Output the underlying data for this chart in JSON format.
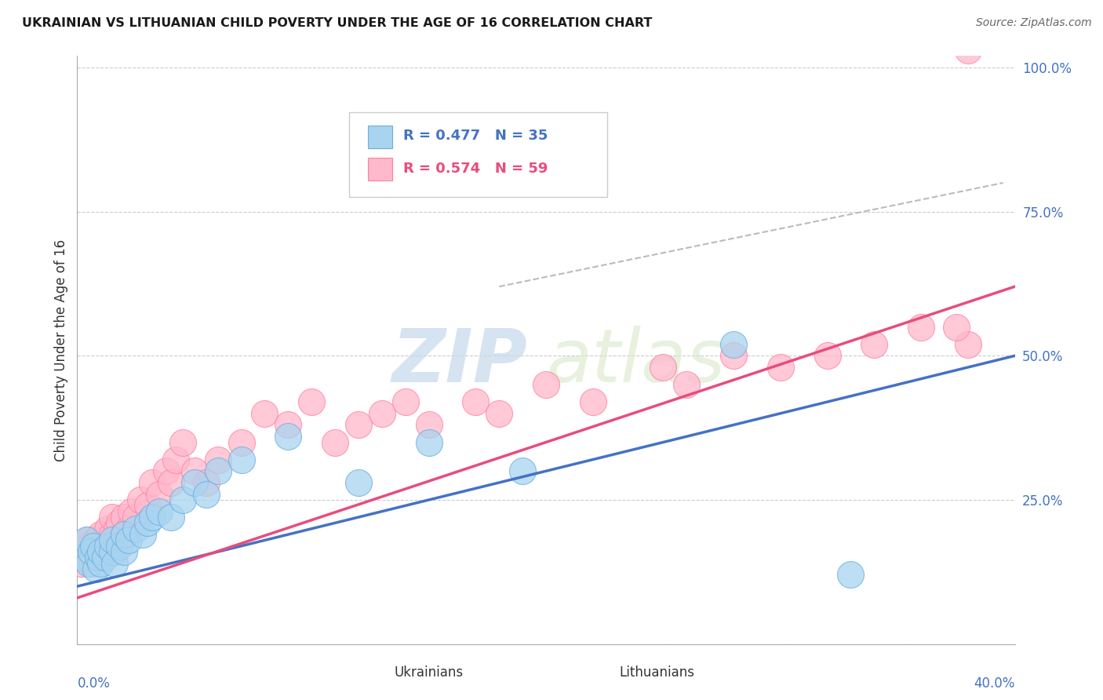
{
  "title": "UKRAINIAN VS LITHUANIAN CHILD POVERTY UNDER THE AGE OF 16 CORRELATION CHART",
  "source": "Source: ZipAtlas.com",
  "ylabel": "Child Poverty Under the Age of 16",
  "xmin": 0.0,
  "xmax": 0.4,
  "ymin": 0.0,
  "ymax": 1.0,
  "color_ukrainian": "#A8D4F0",
  "color_ukrainian_edge": "#6AAEE0",
  "color_lithuanian": "#FFB8CC",
  "color_lithuanian_edge": "#FF80A0",
  "color_ukrainian_line": "#4472C4",
  "color_lithuanian_line": "#E84C7D",
  "color_dashed": "#BBBBBB",
  "watermark_color": "#E0E8F0",
  "legend_r_uk": "R = 0.477",
  "legend_n_uk": "N = 35",
  "legend_r_lt": "R = 0.574",
  "legend_n_lt": "N = 59",
  "uk_x": [
    0.002,
    0.004,
    0.005,
    0.006,
    0.007,
    0.008,
    0.009,
    0.01,
    0.01,
    0.012,
    0.013,
    0.015,
    0.015,
    0.016,
    0.018,
    0.02,
    0.02,
    0.022,
    0.025,
    0.028,
    0.03,
    0.032,
    0.035,
    0.04,
    0.045,
    0.05,
    0.055,
    0.06,
    0.07,
    0.09,
    0.12,
    0.15,
    0.19,
    0.28,
    0.33
  ],
  "uk_y": [
    0.15,
    0.18,
    0.14,
    0.16,
    0.17,
    0.13,
    0.15,
    0.14,
    0.16,
    0.15,
    0.17,
    0.16,
    0.18,
    0.14,
    0.17,
    0.16,
    0.19,
    0.18,
    0.2,
    0.19,
    0.21,
    0.22,
    0.23,
    0.22,
    0.25,
    0.28,
    0.26,
    0.3,
    0.32,
    0.36,
    0.28,
    0.35,
    0.3,
    0.52,
    0.12
  ],
  "lt_x": [
    0.002,
    0.003,
    0.004,
    0.005,
    0.006,
    0.007,
    0.008,
    0.009,
    0.01,
    0.01,
    0.011,
    0.012,
    0.013,
    0.014,
    0.015,
    0.015,
    0.016,
    0.017,
    0.018,
    0.019,
    0.02,
    0.02,
    0.022,
    0.023,
    0.025,
    0.027,
    0.03,
    0.032,
    0.035,
    0.038,
    0.04,
    0.042,
    0.045,
    0.05,
    0.055,
    0.06,
    0.07,
    0.08,
    0.09,
    0.1,
    0.11,
    0.12,
    0.13,
    0.14,
    0.15,
    0.17,
    0.18,
    0.2,
    0.22,
    0.25,
    0.26,
    0.28,
    0.3,
    0.32,
    0.34,
    0.36,
    0.38,
    0.375,
    0.38
  ],
  "lt_y": [
    0.14,
    0.16,
    0.17,
    0.18,
    0.14,
    0.16,
    0.18,
    0.15,
    0.17,
    0.19,
    0.16,
    0.18,
    0.2,
    0.17,
    0.19,
    0.22,
    0.16,
    0.2,
    0.21,
    0.18,
    0.19,
    0.22,
    0.2,
    0.23,
    0.22,
    0.25,
    0.24,
    0.28,
    0.26,
    0.3,
    0.28,
    0.32,
    0.35,
    0.3,
    0.28,
    0.32,
    0.35,
    0.4,
    0.38,
    0.42,
    0.35,
    0.38,
    0.4,
    0.42,
    0.38,
    0.42,
    0.4,
    0.45,
    0.42,
    0.48,
    0.45,
    0.5,
    0.48,
    0.5,
    0.52,
    0.55,
    0.52,
    0.55,
    1.03
  ],
  "uk_line_x0": 0.0,
  "uk_line_y0": 0.1,
  "uk_line_x1": 0.4,
  "uk_line_y1": 0.5,
  "lt_line_x0": 0.0,
  "lt_line_y0": 0.08,
  "lt_line_x1": 0.4,
  "lt_line_y1": 0.62,
  "dash_line_x0": 0.18,
  "dash_line_y0": 0.62,
  "dash_line_x1": 0.395,
  "dash_line_y1": 0.8
}
